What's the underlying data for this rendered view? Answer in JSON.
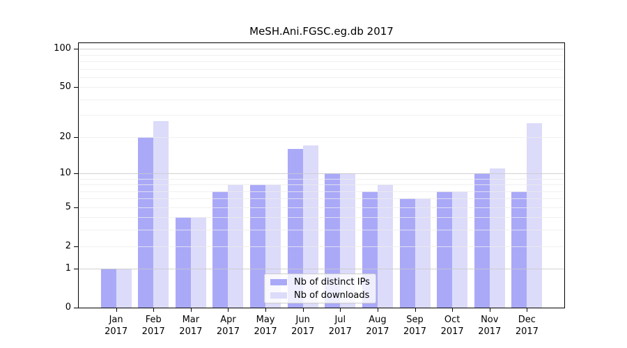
{
  "title": "MeSH.Ani.FGSC.eg.db 2017",
  "colors": {
    "distinct_ips_bar": "#aaa9f8",
    "downloads_bar": "#dcdbfa",
    "major_gridline": "#c9c9c9",
    "minor_gridline": "#ececec",
    "axis_frame": "#000000"
  },
  "chart_data": {
    "type": "bar",
    "title": "MeSH.Ani.FGSC.eg.db 2017",
    "categories": [
      "Jan 2017",
      "Feb 2017",
      "Mar 2017",
      "Apr 2017",
      "May 2017",
      "Jun 2017",
      "Jul 2017",
      "Aug 2017",
      "Sep 2017",
      "Oct 2017",
      "Nov 2017",
      "Dec 2017"
    ],
    "series": [
      {
        "name": "Nb of distinct IPs",
        "color": "#aaa9f8",
        "values": [
          1,
          20,
          4,
          7,
          8,
          16,
          10,
          7,
          6,
          7,
          10,
          7
        ]
      },
      {
        "name": "Nb of downloads",
        "color": "#dcdbfa",
        "values": [
          1,
          27,
          4,
          8,
          8,
          17,
          10,
          8,
          6,
          7,
          11,
          26
        ]
      }
    ],
    "xlabel": "",
    "ylabel": "",
    "yscale": "log1p",
    "ylim": [
      0,
      111
    ],
    "y_tick_values": [
      100,
      50,
      20,
      10,
      5,
      2,
      1,
      0
    ],
    "y_major_gridlines": [
      1,
      10,
      100
    ],
    "y_minor_gridlines": [
      2,
      3,
      4,
      5,
      6,
      7,
      8,
      9,
      20,
      30,
      40,
      50,
      60,
      70,
      80,
      90
    ],
    "grid": "horizontal gridlines drawn over bars",
    "legend_position": "inside lower-center"
  }
}
